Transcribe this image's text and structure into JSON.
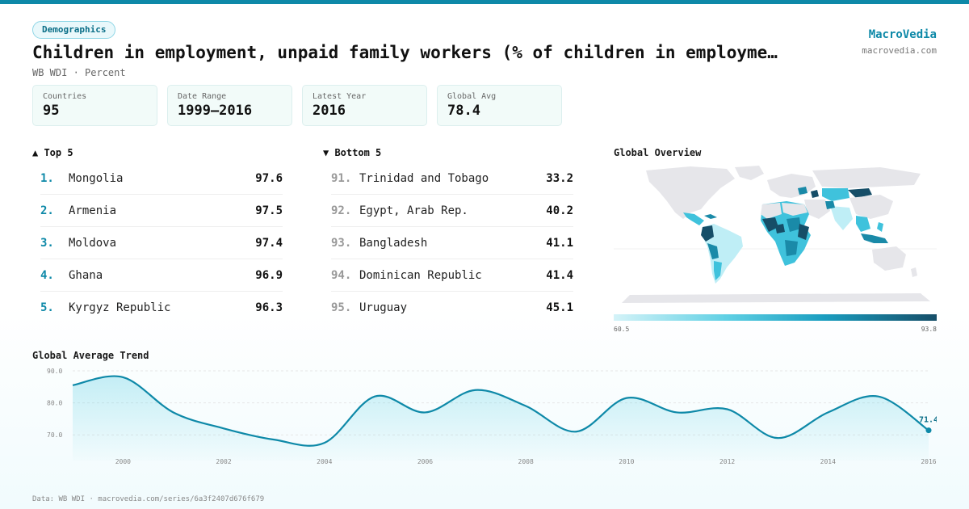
{
  "header": {
    "tag": "Demographics",
    "title": "Children in employment, unpaid family workers (% of children in employme…",
    "subtitle": "WB WDI · Percent",
    "brand": "MacroVedia",
    "brand_url": "macrovedia.com"
  },
  "stats": [
    {
      "label": "Countries",
      "value": "95"
    },
    {
      "label": "Date Range",
      "value": "1999–2016"
    },
    {
      "label": "Latest Year",
      "value": "2016"
    },
    {
      "label": "Global Avg",
      "value": "78.4"
    }
  ],
  "top5": {
    "heading": "▲ Top 5",
    "items": [
      {
        "rank": "1.",
        "name": "Mongolia",
        "value": "97.6"
      },
      {
        "rank": "2.",
        "name": "Armenia",
        "value": "97.5"
      },
      {
        "rank": "3.",
        "name": "Moldova",
        "value": "97.4"
      },
      {
        "rank": "4.",
        "name": "Ghana",
        "value": "96.9"
      },
      {
        "rank": "5.",
        "name": "Kyrgyz Republic",
        "value": "96.3"
      }
    ]
  },
  "bottom5": {
    "heading": "▼ Bottom 5",
    "items": [
      {
        "rank": "91.",
        "name": "Trinidad and Tobago",
        "value": "33.2"
      },
      {
        "rank": "92.",
        "name": "Egypt, Arab Rep.",
        "value": "40.2"
      },
      {
        "rank": "93.",
        "name": "Bangladesh",
        "value": "41.1"
      },
      {
        "rank": "94.",
        "name": "Dominican Republic",
        "value": "41.4"
      },
      {
        "rank": "95.",
        "name": "Uruguay",
        "value": "45.1"
      }
    ]
  },
  "map": {
    "heading": "Global Overview",
    "legend_min": "60.5",
    "legend_max": "93.8",
    "colors": {
      "base": "#e6e6ea",
      "light": "#bfeef6",
      "mid": "#3fc2dc",
      "dark": "#1a8aa8",
      "darkest": "#164e68"
    }
  },
  "trend_heading": "Global Average Trend",
  "chart_data": {
    "type": "area",
    "x": [
      1999,
      2000,
      2001,
      2002,
      2003,
      2004,
      2005,
      2006,
      2007,
      2008,
      2009,
      2010,
      2011,
      2012,
      2013,
      2014,
      2015,
      2016
    ],
    "values": [
      85.5,
      88.0,
      77.0,
      72.0,
      68.5,
      67.5,
      82.0,
      77.0,
      84.0,
      79.0,
      71.0,
      81.5,
      77.0,
      78.0,
      69.0,
      77.0,
      82.0,
      71.4
    ],
    "yticks": [
      70.0,
      80.0,
      90.0
    ],
    "ytick_labels": [
      "70.0",
      "80.0",
      "90.0"
    ],
    "xticks": [
      2000,
      2002,
      2004,
      2006,
      2008,
      2010,
      2012,
      2014,
      2016
    ],
    "xtick_labels": [
      "2000",
      "2002",
      "2004",
      "2006",
      "2008",
      "2010",
      "2012",
      "2014",
      "2016"
    ],
    "ylim": [
      65,
      91
    ],
    "xlim": [
      1999,
      2016
    ],
    "last_label": "71.4",
    "line_color": "#0e89a8",
    "grid": true
  },
  "footer": "Data: WB WDI · macrovedia.com/series/6a3f2407d676f679"
}
